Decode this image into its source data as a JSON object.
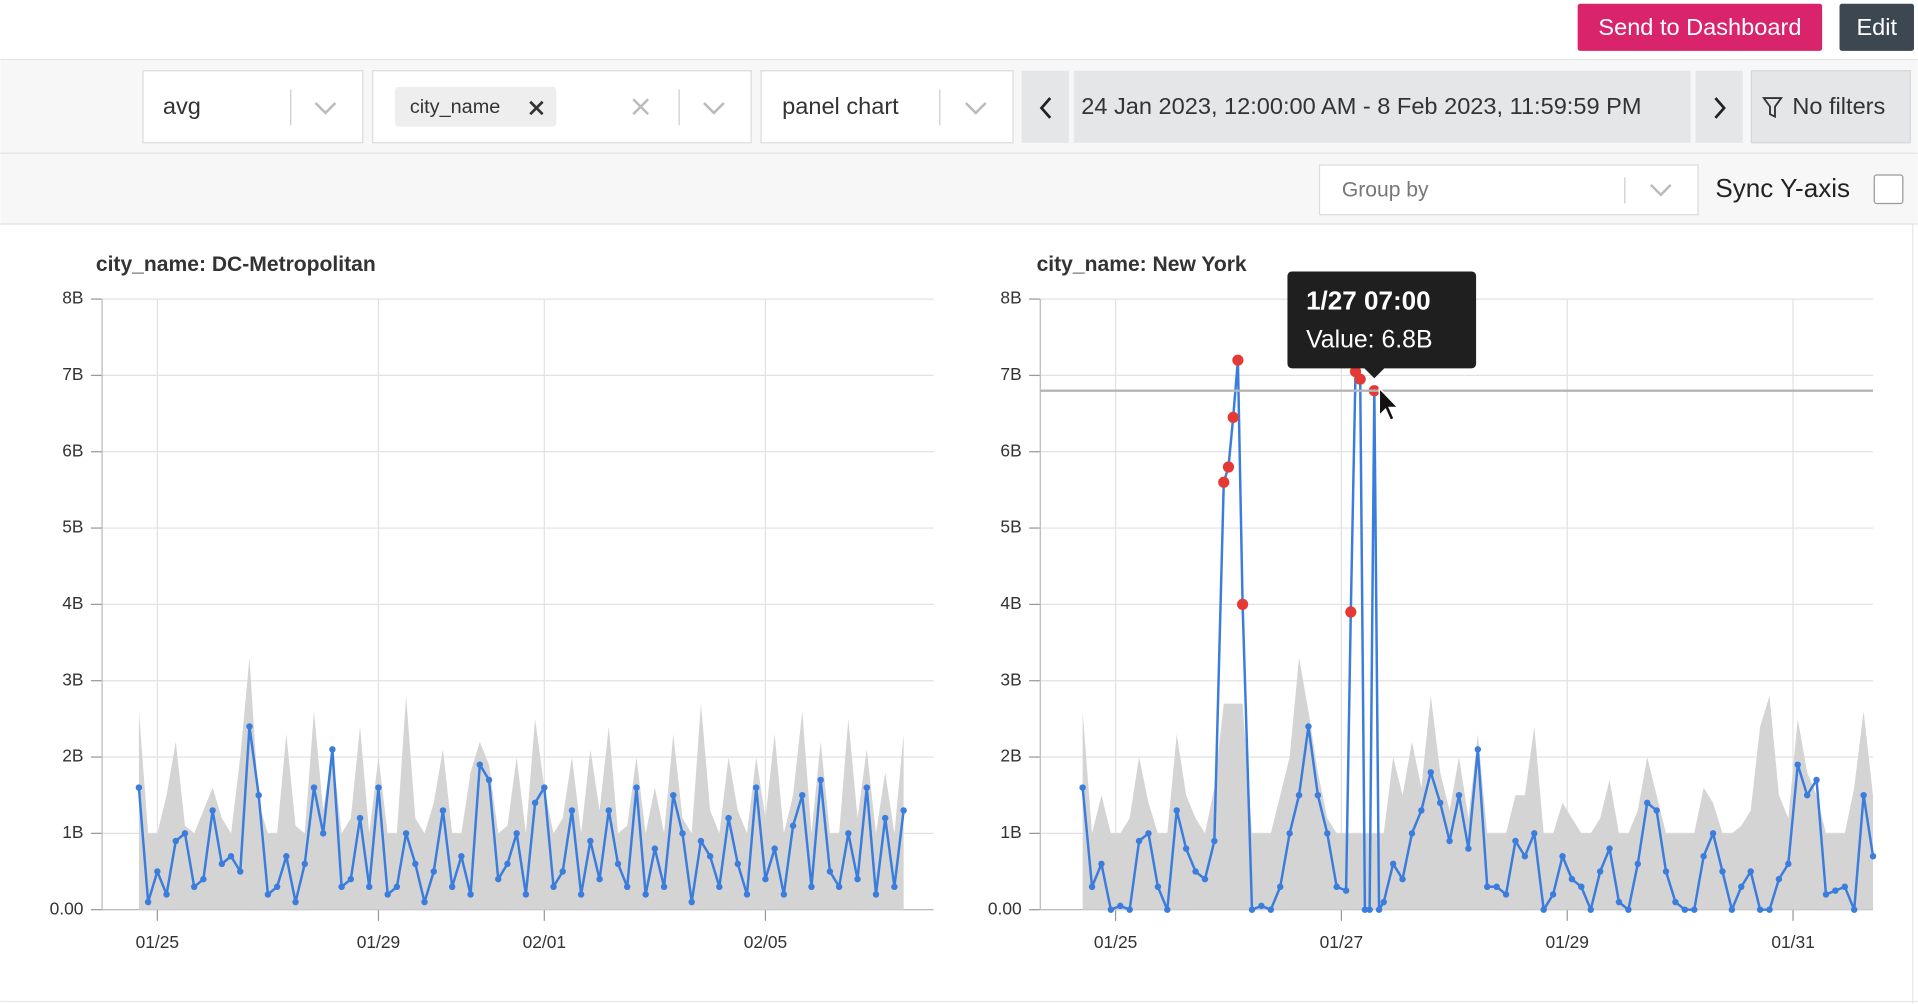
{
  "toolbar": {
    "send_button": "Send to Dashboard",
    "edit_button": "Edit",
    "aggregation": "avg",
    "group_chip": "city_name",
    "view": "panel chart",
    "date_range": "24 Jan 2023, 12:00:00 AM - 8 Feb 2023, 11:59:59 PM",
    "filters": "No filters",
    "group_by_placeholder": "Group by",
    "sync_label": "Sync Y-axis"
  },
  "chart_data": [
    {
      "type": "line",
      "title": "city_name: DC-Metropolitan",
      "xlim": [
        "1/24 00:00",
        "2/8 01:00"
      ],
      "xticks": [
        {
          "value": "1/25 00:00",
          "label": "01/25"
        },
        {
          "value": "1/29 00:00",
          "label": "01/29"
        },
        {
          "value": "2/1 00:00",
          "label": "02/01"
        },
        {
          "value": "2/5 00:00",
          "label": "02/05"
        }
      ],
      "ylim": [
        0,
        8
      ],
      "yticks": [
        {
          "value": 0,
          "label": "0.00"
        },
        {
          "value": 1,
          "label": "1B"
        },
        {
          "value": 2,
          "label": "2B"
        },
        {
          "value": 3,
          "label": "3B"
        },
        {
          "value": 4,
          "label": "4B"
        },
        {
          "value": 5,
          "label": "5B"
        },
        {
          "value": 6,
          "label": "6B"
        },
        {
          "value": 7,
          "label": "7B"
        },
        {
          "value": 8,
          "label": "8B"
        }
      ],
      "grid": true,
      "x": [
        "1/24 16:00",
        "1/24 20:00",
        "1/25 00:00",
        "1/25 04:00",
        "1/25 08:00",
        "1/25 12:00",
        "1/25 16:00",
        "1/25 20:00",
        "1/26 00:00",
        "1/26 04:00",
        "1/26 08:00",
        "1/26 12:00",
        "1/26 16:00",
        "1/26 20:00",
        "1/27 00:00",
        "1/27 04:00",
        "1/27 08:00",
        "1/27 12:00",
        "1/27 16:00",
        "1/27 20:00",
        "1/28 00:00",
        "1/28 04:00",
        "1/28 08:00",
        "1/28 12:00",
        "1/28 16:00",
        "1/28 20:00",
        "1/29 00:00",
        "1/29 04:00",
        "1/29 08:00",
        "1/29 12:00",
        "1/29 16:00",
        "1/29 20:00",
        "1/30 00:00",
        "1/30 04:00",
        "1/30 08:00",
        "1/30 12:00",
        "1/30 16:00",
        "1/30 20:00",
        "1/31 00:00",
        "1/31 04:00",
        "1/31 08:00",
        "1/31 12:00",
        "1/31 16:00",
        "1/31 20:00",
        "2/1 00:00",
        "2/1 04:00",
        "2/1 08:00",
        "2/1 12:00",
        "2/1 16:00",
        "2/1 20:00",
        "2/2 00:00",
        "2/2 04:00",
        "2/2 08:00",
        "2/2 12:00",
        "2/2 16:00",
        "2/2 20:00",
        "2/3 00:00",
        "2/3 04:00",
        "2/3 08:00",
        "2/3 12:00",
        "2/3 16:00",
        "2/3 20:00",
        "2/4 00:00",
        "2/4 04:00",
        "2/4 08:00",
        "2/4 12:00",
        "2/4 16:00",
        "2/4 20:00",
        "2/5 00:00",
        "2/5 04:00",
        "2/5 08:00",
        "2/5 12:00",
        "2/5 16:00",
        "2/5 20:00",
        "2/6 00:00",
        "2/6 04:00",
        "2/6 08:00",
        "2/6 12:00",
        "2/6 16:00",
        "2/6 20:00",
        "2/7 00:00",
        "2/7 04:00",
        "2/7 08:00",
        "2/7 12:00"
      ],
      "series": [
        {
          "type": "area",
          "color": "#d4d4d4",
          "values": [
            2.6,
            1.0,
            1.0,
            1.5,
            2.2,
            1.1,
            1.0,
            1.3,
            1.6,
            1.2,
            1.0,
            2.0,
            3.3,
            1.4,
            1.0,
            1.0,
            2.3,
            1.1,
            1.0,
            2.6,
            1.3,
            2.1,
            1.0,
            1.2,
            2.4,
            1.0,
            2.0,
            1.0,
            1.0,
            2.8,
            1.2,
            1.0,
            1.4,
            2.1,
            1.0,
            1.0,
            1.8,
            2.2,
            1.9,
            1.0,
            1.1,
            2.0,
            1.0,
            2.5,
            1.6,
            1.0,
            1.2,
            2.0,
            1.0,
            2.1,
            1.3,
            2.4,
            1.0,
            1.1,
            2.0,
            1.0,
            1.6,
            1.0,
            2.3,
            1.2,
            1.0,
            2.7,
            1.3,
            1.0,
            2.0,
            1.3,
            1.0,
            2.0,
            1.2,
            2.3,
            1.0,
            1.5,
            2.6,
            1.0,
            2.2,
            1.0,
            1.0,
            2.5,
            1.2,
            2.1,
            1.0,
            1.8,
            1.0,
            2.3
          ]
        },
        {
          "type": "line",
          "color": "#3b7ddd",
          "values": [
            1.6,
            0.1,
            0.5,
            0.2,
            0.9,
            1.0,
            0.3,
            0.4,
            1.3,
            0.6,
            0.7,
            0.5,
            2.4,
            1.5,
            0.2,
            0.3,
            0.7,
            0.1,
            0.6,
            1.6,
            1.0,
            2.1,
            0.3,
            0.4,
            1.2,
            0.3,
            1.6,
            0.2,
            0.3,
            1.0,
            0.6,
            0.1,
            0.5,
            1.3,
            0.3,
            0.7,
            0.2,
            1.9,
            1.7,
            0.4,
            0.6,
            1.0,
            0.2,
            1.4,
            1.6,
            0.3,
            0.5,
            1.3,
            0.2,
            0.9,
            0.4,
            1.3,
            0.6,
            0.3,
            1.6,
            0.2,
            0.8,
            0.3,
            1.5,
            1.0,
            0.1,
            0.9,
            0.7,
            0.3,
            1.2,
            0.6,
            0.2,
            1.6,
            0.4,
            0.8,
            0.2,
            1.1,
            1.5,
            0.3,
            1.7,
            0.5,
            0.3,
            1.0,
            0.4,
            1.6,
            0.2,
            1.2,
            0.3,
            1.3
          ]
        }
      ]
    },
    {
      "type": "line",
      "title": "city_name: New York",
      "xlim": [
        "1/24 08:00",
        "1/31 17:00"
      ],
      "xticks": [
        {
          "value": "1/25 00:00",
          "label": "01/25"
        },
        {
          "value": "1/27 00:00",
          "label": "01/27"
        },
        {
          "value": "1/29 00:00",
          "label": "01/29"
        },
        {
          "value": "1/31 00:00",
          "label": "01/31"
        }
      ],
      "ylim": [
        0,
        8
      ],
      "yticks": [
        {
          "value": 0,
          "label": "0.00"
        },
        {
          "value": 1,
          "label": "1B"
        },
        {
          "value": 2,
          "label": "2B"
        },
        {
          "value": 3,
          "label": "3B"
        },
        {
          "value": 4,
          "label": "4B"
        },
        {
          "value": 5,
          "label": "5B"
        },
        {
          "value": 6,
          "label": "6B"
        },
        {
          "value": 7,
          "label": "7B"
        },
        {
          "value": 8,
          "label": "8B"
        }
      ],
      "grid": true,
      "crosshair": 6.8,
      "tooltip": {
        "title": "1/27 07:00",
        "text": "Value: 6.8B"
      },
      "x": [
        "1/24 17:00",
        "1/24 19:00",
        "1/24 21:00",
        "1/24 23:00",
        "1/25 01:00",
        "1/25 03:00",
        "1/25 05:00",
        "1/25 07:00",
        "1/25 09:00",
        "1/25 11:00",
        "1/25 13:00",
        "1/25 15:00",
        "1/25 17:00",
        "1/25 19:00",
        "1/25 21:00",
        "1/25 23:00",
        "1/26 00:00",
        "1/26 01:00",
        "1/26 02:00",
        "1/26 03:00",
        "1/26 05:00",
        "1/26 07:00",
        "1/26 09:00",
        "1/26 11:00",
        "1/26 13:00",
        "1/26 15:00",
        "1/26 17:00",
        "1/26 19:00",
        "1/26 21:00",
        "1/26 23:00",
        "1/27 01:00",
        "1/27 02:00",
        "1/27 03:00",
        "1/27 04:00",
        "1/27 05:00",
        "1/27 06:00",
        "1/27 07:00",
        "1/27 08:00",
        "1/27 09:00",
        "1/27 11:00",
        "1/27 13:00",
        "1/27 15:00",
        "1/27 17:00",
        "1/27 19:00",
        "1/27 21:00",
        "1/27 23:00",
        "1/28 01:00",
        "1/28 03:00",
        "1/28 05:00",
        "1/28 07:00",
        "1/28 09:00",
        "1/28 11:00",
        "1/28 13:00",
        "1/28 15:00",
        "1/28 17:00",
        "1/28 19:00",
        "1/28 21:00",
        "1/28 23:00",
        "1/29 01:00",
        "1/29 03:00",
        "1/29 05:00",
        "1/29 07:00",
        "1/29 09:00",
        "1/29 11:00",
        "1/29 13:00",
        "1/29 15:00",
        "1/29 17:00",
        "1/29 19:00",
        "1/29 21:00",
        "1/29 23:00",
        "1/30 01:00",
        "1/30 03:00",
        "1/30 05:00",
        "1/30 07:00",
        "1/30 09:00",
        "1/30 11:00",
        "1/30 13:00",
        "1/30 15:00",
        "1/30 17:00",
        "1/30 19:00",
        "1/30 21:00",
        "1/30 23:00",
        "1/31 01:00",
        "1/31 03:00",
        "1/31 05:00",
        "1/31 07:00",
        "1/31 09:00",
        "1/31 11:00",
        "1/31 13:00",
        "1/31 15:00",
        "1/31 17:00"
      ],
      "series": [
        {
          "type": "area",
          "color": "#d4d4d4",
          "values": [
            2.6,
            1.0,
            1.5,
            1.0,
            1.0,
            1.2,
            2.0,
            1.4,
            1.0,
            1.0,
            2.3,
            1.5,
            1.2,
            1.0,
            1.6,
            2.7,
            2.7,
            2.7,
            2.7,
            2.7,
            1.0,
            1.0,
            1.0,
            1.5,
            2.0,
            3.3,
            2.6,
            1.8,
            1.2,
            1.0,
            1.0,
            1.0,
            1.0,
            1.0,
            1.0,
            1.0,
            1.0,
            1.0,
            1.0,
            2.0,
            1.5,
            2.2,
            1.6,
            2.8,
            1.8,
            1.3,
            2.0,
            1.2,
            2.3,
            1.0,
            1.0,
            1.0,
            1.5,
            1.5,
            2.4,
            1.0,
            1.0,
            1.4,
            1.2,
            1.0,
            1.0,
            1.2,
            1.7,
            1.0,
            1.0,
            1.3,
            2.0,
            1.5,
            1.0,
            1.0,
            1.0,
            1.0,
            1.6,
            1.4,
            1.0,
            1.0,
            1.1,
            1.3,
            2.4,
            2.8,
            1.5,
            1.2,
            2.5,
            1.8,
            1.5,
            1.0,
            1.0,
            1.0,
            1.6,
            2.6,
            1.5
          ]
        },
        {
          "type": "line",
          "color": "#3b7ddd",
          "values": [
            1.6,
            0.3,
            0.6,
            0.0,
            0.05,
            0.0,
            0.9,
            1.0,
            0.3,
            0.0,
            1.3,
            0.8,
            0.5,
            0.4,
            0.9,
            5.6,
            5.8,
            6.45,
            7.2,
            4.0,
            0.0,
            0.05,
            0.0,
            0.3,
            1.0,
            1.5,
            2.4,
            1.5,
            1.0,
            0.3,
            0.25,
            3.9,
            7.05,
            6.95,
            0.0,
            0.0,
            6.8,
            0.0,
            0.1,
            0.6,
            0.4,
            1.0,
            1.3,
            1.8,
            1.4,
            0.9,
            1.5,
            0.8,
            2.1,
            0.3,
            0.3,
            0.2,
            0.9,
            0.7,
            1.0,
            0.0,
            0.2,
            0.7,
            0.4,
            0.3,
            0.0,
            0.5,
            0.8,
            0.1,
            0.0,
            0.6,
            1.4,
            1.3,
            0.5,
            0.1,
            0.0,
            0.0,
            0.7,
            1.0,
            0.5,
            0.0,
            0.3,
            0.5,
            0.0,
            0.0,
            0.4,
            0.6,
            1.9,
            1.5,
            1.7,
            0.2,
            0.25,
            0.3,
            0.0,
            1.5,
            0.7
          ]
        },
        {
          "type": "markers",
          "color": "#e53935",
          "x": [
            "1/25 23:00",
            "1/26 00:00",
            "1/26 01:00",
            "1/26 02:00",
            "1/26 03:00",
            "1/27 02:00",
            "1/27 03:00",
            "1/27 04:00",
            "1/27 07:00"
          ],
          "values": [
            5.6,
            5.8,
            6.45,
            7.2,
            4.0,
            3.9,
            7.05,
            6.95,
            6.8
          ]
        }
      ]
    }
  ]
}
